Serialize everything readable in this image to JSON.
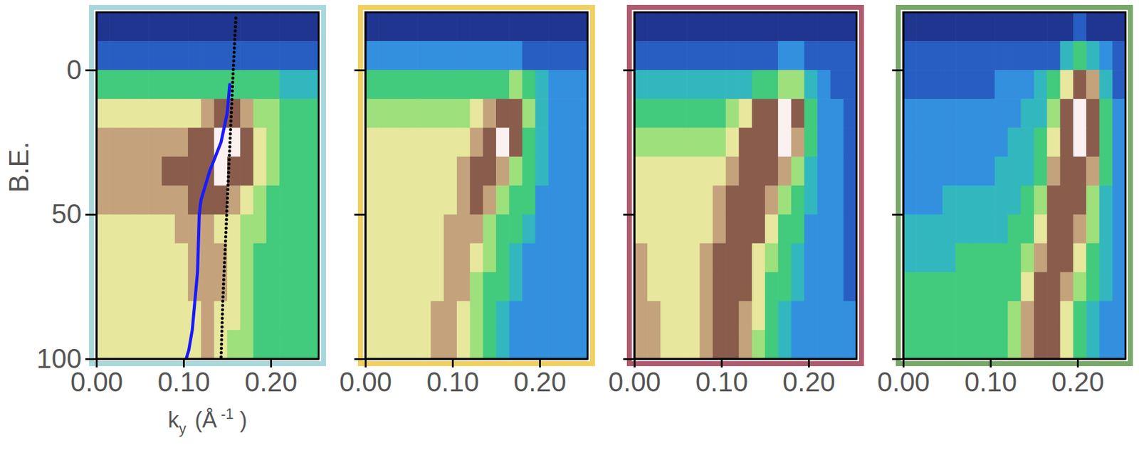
{
  "chart_data": [
    {
      "type": "heatmap",
      "color": "#a8d8dc",
      "ylabel": "B.E.",
      "xlabel": {
        "text": "k",
        "sub": "y",
        "unit": "(Å",
        "sup": "-1",
        "close": ")"
      },
      "xlim": [
        0,
        0.255
      ],
      "ylim": [
        -20,
        100
      ],
      "xticks": [
        {
          "value": 0,
          "label": "0.00"
        },
        {
          "value": 0.1,
          "label": "0.10"
        },
        {
          "value": 0.2,
          "label": "0.20"
        }
      ],
      "yticks": [
        0,
        50,
        100
      ],
      "zlim": [
        0,
        9
      ],
      "x_edges": [
        0,
        0.015,
        0.03,
        0.045,
        0.06,
        0.075,
        0.09,
        0.105,
        0.12,
        0.135,
        0.15,
        0.165,
        0.18,
        0.195,
        0.21,
        0.225,
        0.24,
        0.255
      ],
      "y_edges": [
        -20,
        -10,
        0,
        10,
        20,
        30,
        40,
        50,
        60,
        70,
        80,
        90,
        100
      ],
      "z": [
        [
          0,
          0,
          0,
          0,
          0,
          0,
          0,
          0,
          0,
          0,
          0,
          0,
          0,
          0,
          0,
          0,
          0
        ],
        [
          1,
          1,
          1,
          1,
          1,
          1,
          1,
          1,
          1,
          1,
          1,
          1,
          1,
          1,
          1,
          1,
          1
        ],
        [
          4,
          4,
          4,
          4,
          4,
          4,
          4,
          4,
          4,
          4,
          4,
          4,
          4,
          4,
          3,
          3,
          3
        ],
        [
          6,
          6,
          6,
          6,
          6,
          6,
          6,
          6,
          7,
          8,
          8,
          7,
          5,
          5,
          4,
          4,
          4
        ],
        [
          7,
          7,
          7,
          7,
          7,
          7,
          7,
          8,
          8,
          9,
          9,
          8,
          6,
          5,
          4,
          4,
          4
        ],
        [
          7,
          7,
          7,
          7,
          7,
          8,
          8,
          8,
          8,
          9,
          8,
          8,
          6,
          5,
          4,
          4,
          4
        ],
        [
          7,
          7,
          7,
          7,
          7,
          7,
          7,
          8,
          8,
          8,
          7,
          6,
          5,
          4,
          4,
          4,
          4
        ],
        [
          6,
          6,
          6,
          6,
          6,
          6,
          7,
          7,
          7,
          6,
          6,
          5,
          5,
          4,
          4,
          4,
          4
        ],
        [
          6,
          6,
          6,
          6,
          6,
          6,
          6,
          7,
          7,
          7,
          6,
          5,
          4,
          4,
          4,
          4,
          4
        ],
        [
          6,
          6,
          6,
          6,
          6,
          6,
          6,
          7,
          7,
          7,
          6,
          5,
          4,
          4,
          4,
          4,
          4
        ],
        [
          6,
          6,
          6,
          6,
          6,
          6,
          6,
          6,
          7,
          6,
          6,
          5,
          4,
          4,
          4,
          4,
          4
        ],
        [
          6,
          6,
          6,
          6,
          6,
          6,
          6,
          6,
          7,
          6,
          5,
          5,
          4,
          4,
          4,
          4,
          4
        ]
      ],
      "series": [
        {
          "color": "#1a1aff",
          "line_style": "solid",
          "x": [
            0.153,
            0.15,
            0.143,
            0.13,
            0.12,
            0.118,
            0.117,
            0.116,
            0.113,
            0.11,
            0.106,
            0.103
          ],
          "values": [
            5,
            15,
            25,
            35,
            45,
            50,
            60,
            70,
            80,
            90,
            97,
            100
          ]
        },
        {
          "color": "#000000",
          "line_style": "dotted",
          "x": [
            0.16,
            0.157,
            0.154,
            0.151,
            0.148,
            0.145,
            0.143
          ],
          "values": [
            -18,
            0,
            20,
            40,
            60,
            80,
            100
          ]
        }
      ]
    },
    {
      "type": "heatmap",
      "color": "#f2d060",
      "tick_labels": "x",
      "xlim": [
        0,
        0.255
      ],
      "ylim": [
        -20,
        100
      ],
      "xticks": [
        {
          "value": 0,
          "label": "0.00"
        },
        {
          "value": 0.1,
          "label": "0.10"
        },
        {
          "value": 0.2,
          "label": "0.20"
        }
      ],
      "yticks": [
        0,
        50,
        100
      ],
      "zlim": [
        0,
        9
      ],
      "x_edges": [
        0,
        0.015,
        0.03,
        0.045,
        0.06,
        0.075,
        0.09,
        0.105,
        0.12,
        0.135,
        0.15,
        0.165,
        0.18,
        0.195,
        0.21,
        0.225,
        0.24,
        0.255
      ],
      "y_edges": [
        -20,
        -10,
        0,
        10,
        20,
        30,
        40,
        50,
        60,
        70,
        80,
        90,
        100
      ],
      "z": [
        [
          0,
          0,
          0,
          0,
          0,
          0,
          0,
          0,
          0,
          0,
          0,
          0,
          0,
          0,
          0,
          0,
          0
        ],
        [
          2,
          2,
          2,
          2,
          2,
          2,
          2,
          2,
          2,
          2,
          2,
          2,
          1,
          1,
          1,
          1,
          1
        ],
        [
          4,
          4,
          4,
          4,
          4,
          4,
          4,
          4,
          4,
          4,
          4,
          5,
          4,
          3,
          2,
          2,
          2
        ],
        [
          5,
          5,
          5,
          5,
          5,
          5,
          5,
          5,
          6,
          7,
          8,
          8,
          5,
          3,
          2,
          2,
          2
        ],
        [
          6,
          6,
          6,
          6,
          6,
          6,
          6,
          6,
          7,
          8,
          9,
          8,
          4,
          3,
          2,
          2,
          2
        ],
        [
          6,
          6,
          6,
          6,
          6,
          6,
          6,
          7,
          8,
          8,
          7,
          5,
          4,
          3,
          2,
          2,
          2
        ],
        [
          6,
          6,
          6,
          6,
          6,
          6,
          6,
          7,
          8,
          7,
          5,
          4,
          4,
          2,
          2,
          2,
          2
        ],
        [
          6,
          6,
          6,
          6,
          6,
          6,
          7,
          7,
          7,
          5,
          4,
          4,
          3,
          2,
          2,
          2,
          2
        ],
        [
          6,
          6,
          6,
          6,
          6,
          6,
          7,
          7,
          6,
          5,
          4,
          3,
          2,
          2,
          2,
          2,
          2
        ],
        [
          6,
          6,
          6,
          6,
          6,
          6,
          7,
          7,
          5,
          4,
          4,
          3,
          2,
          2,
          2,
          2,
          2
        ],
        [
          6,
          6,
          6,
          6,
          6,
          7,
          7,
          6,
          5,
          4,
          3,
          2,
          2,
          2,
          2,
          2,
          2
        ],
        [
          6,
          6,
          6,
          6,
          6,
          7,
          7,
          6,
          5,
          4,
          3,
          2,
          2,
          2,
          2,
          2,
          2
        ]
      ]
    },
    {
      "type": "heatmap",
      "color": "#b05a6e",
      "tick_labels": "x",
      "xlim": [
        0,
        0.255
      ],
      "ylim": [
        -20,
        100
      ],
      "xticks": [
        {
          "value": 0,
          "label": "0.00"
        },
        {
          "value": 0.1,
          "label": "0.10"
        },
        {
          "value": 0.2,
          "label": "0.20"
        }
      ],
      "yticks": [
        0,
        50,
        100
      ],
      "zlim": [
        0,
        9
      ],
      "x_edges": [
        0,
        0.015,
        0.03,
        0.045,
        0.06,
        0.075,
        0.09,
        0.105,
        0.12,
        0.135,
        0.15,
        0.165,
        0.18,
        0.195,
        0.21,
        0.225,
        0.24,
        0.255
      ],
      "y_edges": [
        -20,
        -10,
        0,
        10,
        20,
        30,
        40,
        50,
        60,
        70,
        80,
        90,
        100
      ],
      "z": [
        [
          0,
          0,
          0,
          0,
          0,
          0,
          0,
          0,
          0,
          0,
          0,
          0,
          0,
          0,
          0,
          0,
          0
        ],
        [
          1,
          1,
          1,
          1,
          1,
          1,
          1,
          1,
          1,
          1,
          1,
          2,
          2,
          1,
          1,
          1,
          1
        ],
        [
          3,
          3,
          3,
          3,
          3,
          3,
          3,
          3,
          3,
          4,
          4,
          5,
          5,
          3,
          2,
          1,
          1
        ],
        [
          4,
          4,
          4,
          4,
          4,
          4,
          4,
          5,
          6,
          8,
          8,
          9,
          8,
          4,
          2,
          2,
          1
        ],
        [
          5,
          5,
          5,
          5,
          5,
          5,
          5,
          6,
          8,
          8,
          8,
          9,
          7,
          4,
          2,
          2,
          1
        ],
        [
          6,
          6,
          6,
          6,
          6,
          6,
          6,
          7,
          8,
          8,
          8,
          7,
          5,
          3,
          2,
          2,
          1
        ],
        [
          6,
          6,
          6,
          6,
          6,
          6,
          7,
          8,
          8,
          8,
          7,
          5,
          4,
          3,
          2,
          2,
          1
        ],
        [
          6,
          6,
          6,
          6,
          6,
          6,
          7,
          8,
          8,
          8,
          6,
          4,
          4,
          2,
          2,
          2,
          1
        ],
        [
          7,
          6,
          6,
          6,
          6,
          7,
          8,
          8,
          8,
          6,
          5,
          4,
          3,
          2,
          2,
          2,
          1
        ],
        [
          7,
          6,
          6,
          6,
          6,
          7,
          8,
          8,
          8,
          6,
          4,
          4,
          3,
          2,
          2,
          2,
          1
        ],
        [
          7,
          7,
          6,
          6,
          6,
          7,
          8,
          8,
          7,
          6,
          4,
          3,
          2,
          2,
          2,
          2,
          2
        ],
        [
          7,
          7,
          6,
          6,
          6,
          7,
          8,
          8,
          7,
          5,
          4,
          3,
          2,
          2,
          2,
          2,
          2
        ]
      ]
    },
    {
      "type": "heatmap",
      "color": "#78a868",
      "tick_labels": "x",
      "xlim": [
        0,
        0.255
      ],
      "ylim": [
        -20,
        100
      ],
      "xticks": [
        {
          "value": 0,
          "label": "0.00"
        },
        {
          "value": 0.1,
          "label": "0.10"
        },
        {
          "value": 0.2,
          "label": "0.20"
        }
      ],
      "yticks": [
        0,
        50,
        100
      ],
      "zlim": [
        0,
        9
      ],
      "x_edges": [
        0,
        0.015,
        0.03,
        0.045,
        0.06,
        0.075,
        0.09,
        0.105,
        0.12,
        0.135,
        0.15,
        0.165,
        0.18,
        0.195,
        0.21,
        0.225,
        0.24,
        0.255
      ],
      "y_edges": [
        -20,
        -10,
        0,
        10,
        20,
        30,
        40,
        50,
        60,
        70,
        80,
        90,
        100
      ],
      "z": [
        [
          0,
          0,
          0,
          0,
          0,
          0,
          0,
          0,
          0,
          0,
          0,
          0,
          0,
          1,
          0,
          0,
          0
        ],
        [
          1,
          1,
          1,
          1,
          1,
          1,
          1,
          1,
          1,
          1,
          1,
          1,
          3,
          4,
          3,
          2,
          1
        ],
        [
          1,
          1,
          1,
          1,
          1,
          1,
          1,
          2,
          2,
          2,
          3,
          4,
          6,
          8,
          7,
          3,
          1
        ],
        [
          2,
          2,
          2,
          2,
          2,
          2,
          2,
          2,
          2,
          3,
          3,
          5,
          8,
          9,
          8,
          4,
          2
        ],
        [
          2,
          2,
          2,
          2,
          2,
          2,
          2,
          2,
          3,
          3,
          4,
          6,
          8,
          9,
          8,
          4,
          2
        ],
        [
          2,
          2,
          2,
          2,
          2,
          2,
          2,
          3,
          3,
          3,
          4,
          7,
          8,
          8,
          7,
          4,
          2
        ],
        [
          2,
          2,
          2,
          3,
          3,
          3,
          3,
          3,
          3,
          4,
          5,
          8,
          8,
          8,
          5,
          3,
          2
        ],
        [
          3,
          3,
          3,
          3,
          3,
          3,
          3,
          3,
          4,
          4,
          6,
          8,
          8,
          7,
          5,
          3,
          2
        ],
        [
          3,
          3,
          3,
          3,
          4,
          4,
          4,
          4,
          4,
          5,
          7,
          8,
          8,
          6,
          4,
          3,
          2
        ],
        [
          4,
          4,
          4,
          4,
          4,
          4,
          4,
          4,
          4,
          6,
          8,
          8,
          7,
          5,
          4,
          3,
          2
        ],
        [
          4,
          4,
          4,
          4,
          4,
          4,
          4,
          4,
          5,
          7,
          8,
          8,
          6,
          4,
          3,
          2,
          2
        ],
        [
          4,
          4,
          4,
          4,
          4,
          4,
          4,
          4,
          5,
          7,
          8,
          8,
          6,
          4,
          3,
          2,
          2
        ]
      ]
    }
  ]
}
